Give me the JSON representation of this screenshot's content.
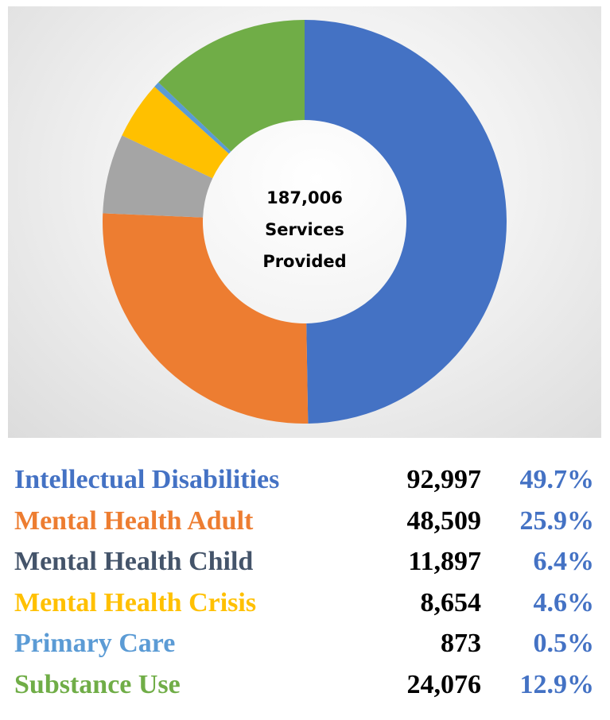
{
  "chart_data": {
    "type": "pie",
    "variant": "donut",
    "center_label": [
      "187,006",
      "Services",
      "Provided"
    ],
    "start_angle_deg": 0,
    "direction": "clockwise",
    "series": [
      {
        "name": "Intellectual Disabilities",
        "value": "92,997",
        "value_num": 92997,
        "percent": "49.7%",
        "color": "#4472c4",
        "label_color": "#4472c4"
      },
      {
        "name": "Mental Health Adult",
        "value": "48,509",
        "value_num": 48509,
        "percent": "25.9%",
        "color": "#ed7d31",
        "label_color": "#ed7d31"
      },
      {
        "name": "Mental Health Child",
        "value": "11,897",
        "value_num": 11897,
        "percent": "6.4%",
        "color": "#a5a5a5",
        "label_color": "#44546a"
      },
      {
        "name": "Mental Health Crisis",
        "value": "8,654",
        "value_num": 8654,
        "percent": "4.6%",
        "color": "#ffc000",
        "label_color": "#ffc000"
      },
      {
        "name": "Primary Care",
        "value": "873",
        "value_num": 873,
        "percent": "0.5%",
        "color": "#5b9bd5",
        "label_color": "#5b9bd5"
      },
      {
        "name": "Substance Use",
        "value": "24,076",
        "value_num": 24076,
        "percent": "12.9%",
        "color": "#70ad47",
        "label_color": "#70ad47"
      }
    ]
  }
}
